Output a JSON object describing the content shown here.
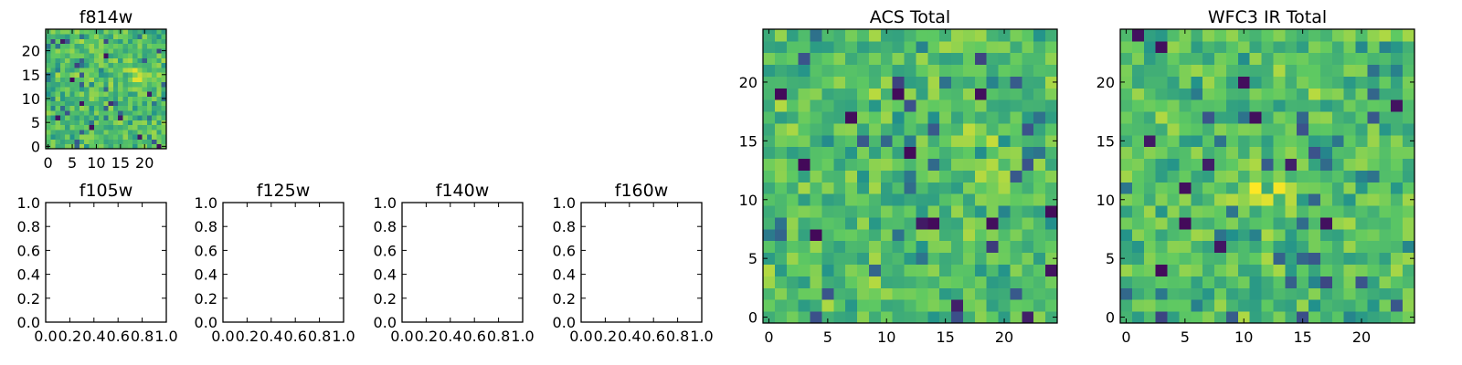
{
  "figure": {
    "background": "#ffffff",
    "colormap": "viridis",
    "colormap_stops": [
      "#440154",
      "#3b528b",
      "#21918c",
      "#5ec962",
      "#fde725"
    ]
  },
  "chart_data": [
    {
      "id": "f814w",
      "type": "heatmap",
      "title": "f814w",
      "xlabel": "",
      "ylabel": "",
      "grid_size": 25,
      "origin": "lower",
      "xlim": [
        -0.5,
        24.5
      ],
      "ylim": [
        -0.5,
        24.5
      ],
      "x_ticks": [
        0,
        5,
        10,
        15,
        20
      ],
      "y_ticks": [
        0,
        5,
        10,
        15,
        20
      ],
      "seed": 814,
      "bright_peak": [
        19,
        15
      ],
      "low_pixels": [
        [
          3,
          22
        ],
        [
          12,
          19
        ],
        [
          19,
          2
        ],
        [
          7,
          9
        ],
        [
          15,
          6
        ],
        [
          23,
          0
        ],
        [
          5,
          14
        ],
        [
          21,
          11
        ],
        [
          9,
          4
        ],
        [
          2,
          6
        ]
      ]
    },
    {
      "id": "f105w",
      "type": "heatmap",
      "title": "f105w",
      "empty": true,
      "xlim": [
        0.0,
        1.0
      ],
      "ylim": [
        0.0,
        1.0
      ],
      "x_ticks": [
        "0.0",
        "0.2",
        "0.4",
        "0.6",
        "0.8",
        "1.0"
      ],
      "y_ticks": [
        "0.0",
        "0.2",
        "0.4",
        "0.6",
        "0.8",
        "1.0"
      ]
    },
    {
      "id": "f125w",
      "type": "heatmap",
      "title": "f125w",
      "empty": true,
      "xlim": [
        0.0,
        1.0
      ],
      "ylim": [
        0.0,
        1.0
      ],
      "x_ticks": [
        "0.0",
        "0.2",
        "0.4",
        "0.6",
        "0.8",
        "1.0"
      ],
      "y_ticks": [
        "0.0",
        "0.2",
        "0.4",
        "0.6",
        "0.8",
        "1.0"
      ]
    },
    {
      "id": "f140w",
      "type": "heatmap",
      "title": "f140w",
      "empty": true,
      "xlim": [
        0.0,
        1.0
      ],
      "ylim": [
        0.0,
        1.0
      ],
      "x_ticks": [
        "0.0",
        "0.2",
        "0.4",
        "0.6",
        "0.8",
        "1.0"
      ],
      "y_ticks": [
        "0.0",
        "0.2",
        "0.4",
        "0.6",
        "0.8",
        "1.0"
      ]
    },
    {
      "id": "f160w",
      "type": "heatmap",
      "title": "f160w",
      "empty": true,
      "xlim": [
        0.0,
        1.0
      ],
      "ylim": [
        0.0,
        1.0
      ],
      "x_ticks": [
        "0.0",
        "0.2",
        "0.4",
        "0.6",
        "0.8",
        "1.0"
      ],
      "y_ticks": [
        "0.0",
        "0.2",
        "0.4",
        "0.6",
        "0.8",
        "1.0"
      ]
    },
    {
      "id": "acs_total",
      "type": "heatmap",
      "title": "ACS Total",
      "xlabel": "",
      "ylabel": "",
      "grid_size": 25,
      "origin": "lower",
      "xlim": [
        -0.5,
        24.5
      ],
      "ylim": [
        -0.5,
        24.5
      ],
      "x_ticks": [
        0,
        5,
        10,
        15,
        20
      ],
      "y_ticks": [
        0,
        5,
        10,
        15,
        20
      ],
      "seed": 101,
      "bright_peak": [
        18,
        15
      ],
      "low_pixels": [
        [
          7,
          17
        ],
        [
          16,
          1
        ],
        [
          22,
          0
        ],
        [
          13,
          8
        ],
        [
          14,
          8
        ],
        [
          19,
          8
        ],
        [
          24,
          9
        ],
        [
          4,
          7
        ],
        [
          12,
          14
        ],
        [
          3,
          13
        ],
        [
          24,
          4
        ],
        [
          11,
          19
        ],
        [
          18,
          19
        ],
        [
          1,
          19
        ]
      ]
    },
    {
      "id": "wfc3_ir_total",
      "type": "heatmap",
      "title": "WFC3 IR Total",
      "xlabel": "",
      "ylabel": "",
      "grid_size": 25,
      "origin": "lower",
      "xlim": [
        -0.5,
        24.5
      ],
      "ylim": [
        -0.5,
        24.5
      ],
      "x_ticks": [
        0,
        5,
        10,
        15,
        20
      ],
      "y_ticks": [
        0,
        5,
        10,
        15,
        20
      ],
      "seed": 202,
      "bright_peak": [
        12,
        11
      ],
      "low_pixels": [
        [
          1,
          24
        ],
        [
          3,
          23
        ],
        [
          11,
          17
        ],
        [
          2,
          15
        ],
        [
          7,
          13
        ],
        [
          14,
          13
        ],
        [
          5,
          11
        ],
        [
          5,
          8
        ],
        [
          17,
          8
        ],
        [
          8,
          6
        ],
        [
          10,
          20
        ],
        [
          23,
          18
        ],
        [
          3,
          4
        ]
      ]
    }
  ]
}
